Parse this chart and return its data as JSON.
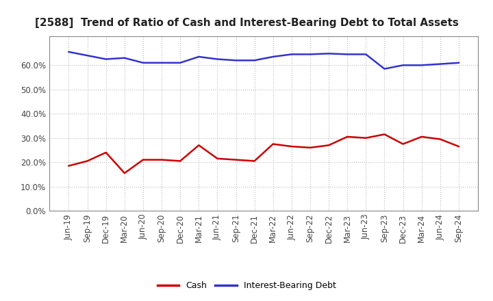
{
  "title": "[2588]  Trend of Ratio of Cash and Interest-Bearing Debt to Total Assets",
  "x_labels": [
    "Jun-19",
    "Sep-19",
    "Dec-19",
    "Mar-20",
    "Jun-20",
    "Sep-20",
    "Dec-20",
    "Mar-21",
    "Jun-21",
    "Sep-21",
    "Dec-21",
    "Mar-22",
    "Jun-22",
    "Sep-22",
    "Dec-22",
    "Mar-23",
    "Jun-23",
    "Sep-23",
    "Dec-23",
    "Mar-24",
    "Jun-24",
    "Sep-24"
  ],
  "cash": [
    0.185,
    0.205,
    0.24,
    0.155,
    0.21,
    0.21,
    0.205,
    0.27,
    0.215,
    0.21,
    0.205,
    0.275,
    0.265,
    0.26,
    0.27,
    0.305,
    0.3,
    0.315,
    0.275,
    0.305,
    0.295,
    0.265
  ],
  "interest_bearing_debt": [
    0.655,
    0.64,
    0.625,
    0.63,
    0.61,
    0.61,
    0.61,
    0.635,
    0.625,
    0.62,
    0.62,
    0.635,
    0.645,
    0.645,
    0.648,
    0.645,
    0.645,
    0.585,
    0.6,
    0.6,
    0.605,
    0.61
  ],
  "cash_color": "#cc0000",
  "debt_color": "#3333cc",
  "background_color": "#ffffff",
  "ylim": [
    0.0,
    0.72
  ],
  "yticks": [
    0.0,
    0.1,
    0.2,
    0.3,
    0.4,
    0.5,
    0.6
  ],
  "grid_color": "#bbbbbb",
  "title_fontsize": 11,
  "tick_fontsize": 8.5,
  "legend_labels": [
    "Cash",
    "Interest-Bearing Debt"
  ],
  "linewidth": 1.8
}
